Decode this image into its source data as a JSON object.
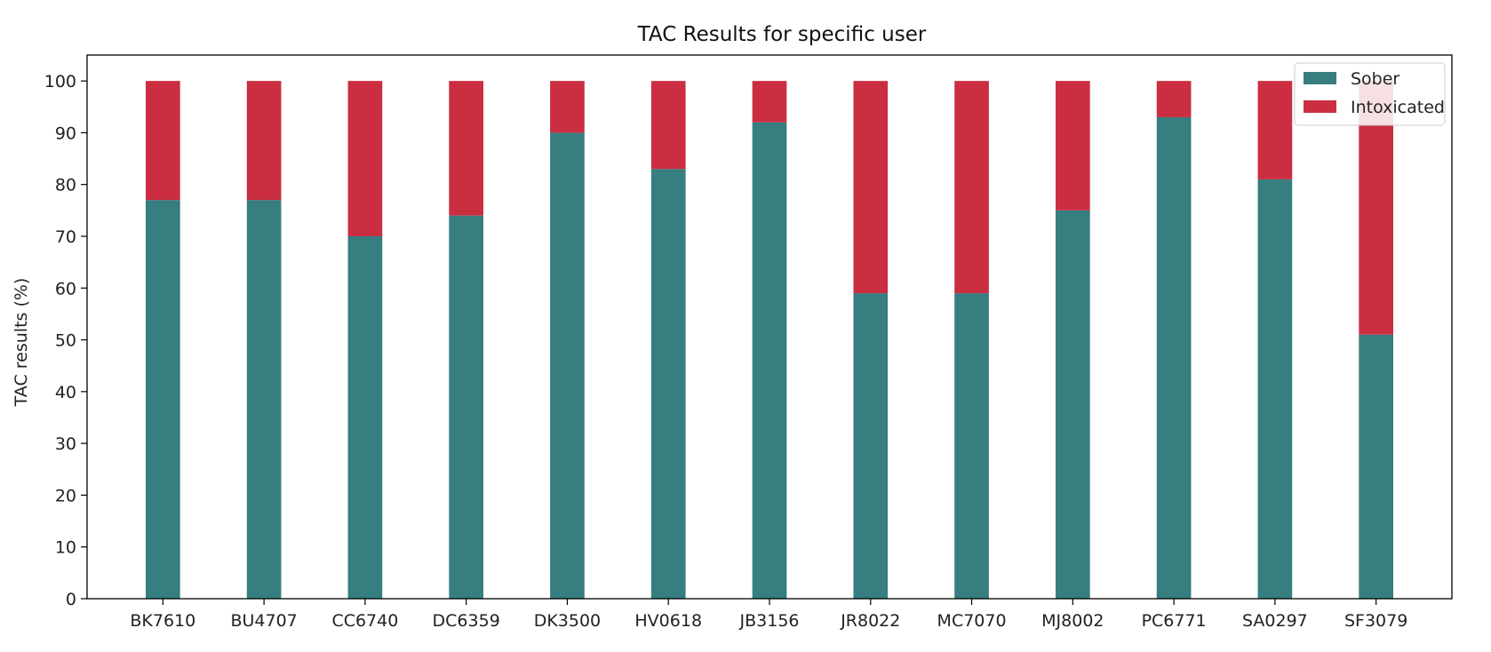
{
  "chart_data": {
    "type": "bar",
    "stacked": true,
    "title": "TAC Results for specific user",
    "xlabel": "",
    "ylabel": "TAC results (%)",
    "ylim": [
      0,
      105
    ],
    "yticks": [
      0,
      10,
      20,
      30,
      40,
      50,
      60,
      70,
      80,
      90,
      100
    ],
    "categories": [
      "BK7610",
      "BU4707",
      "CC6740",
      "DC6359",
      "DK3500",
      "HV0618",
      "JB3156",
      "JR8022",
      "MC7070",
      "MJ8002",
      "PC6771",
      "SA0297",
      "SF3079"
    ],
    "series": [
      {
        "name": "Sober",
        "color": "#367e7f",
        "values": [
          77,
          77,
          70,
          74,
          90,
          83,
          92,
          59,
          59,
          75,
          93,
          81,
          51
        ]
      },
      {
        "name": "Intoxicated",
        "color": "#ca2e40",
        "values": [
          23,
          23,
          30,
          26,
          10,
          17,
          8,
          41,
          41,
          25,
          7,
          19,
          49
        ]
      }
    ],
    "grid": false,
    "legend_position": "top-right"
  }
}
